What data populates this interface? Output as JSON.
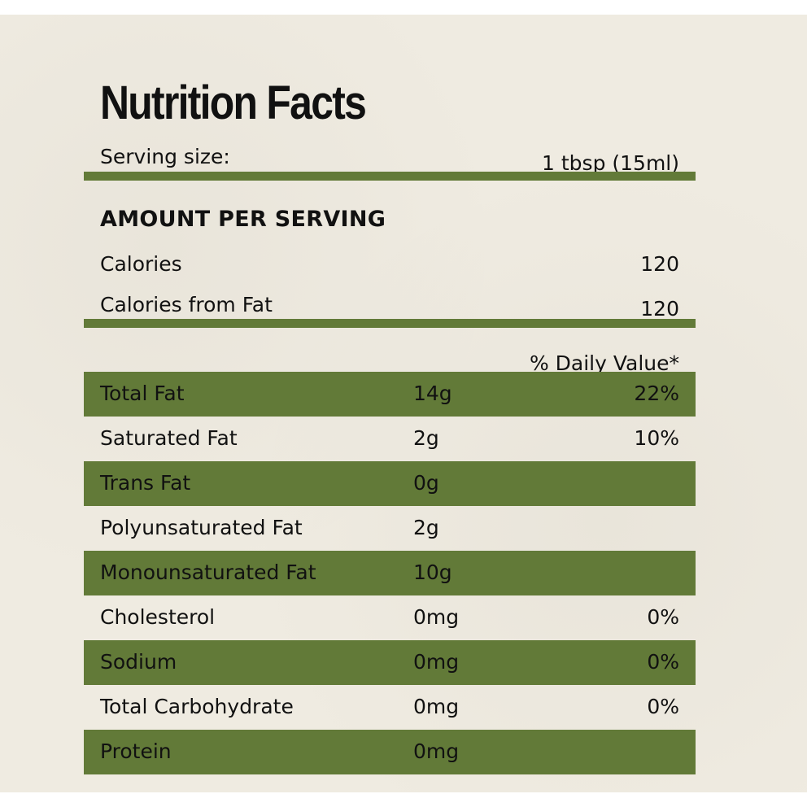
{
  "title": "Nutrition Facts",
  "colors": {
    "accent": "#627a38",
    "background": "#efebe1",
    "text": "#111111"
  },
  "serving": {
    "label": "Serving size:",
    "value": "1 tbsp (15ml)"
  },
  "amount_header": "AMOUNT PER SERVING",
  "calories": {
    "label": "Calories",
    "value": "120"
  },
  "calories_from_fat": {
    "label": "Calories from Fat",
    "value": "120"
  },
  "daily_value_header": "% Daily Value*",
  "nutrients": [
    {
      "name": "Total Fat",
      "amount": "14g",
      "dv": "22%"
    },
    {
      "name": "Saturated Fat",
      "amount": "2g",
      "dv": "10%"
    },
    {
      "name": "Trans Fat",
      "amount": "0g",
      "dv": ""
    },
    {
      "name": "Polyunsaturated Fat",
      "amount": "2g",
      "dv": ""
    },
    {
      "name": "Monounsaturated Fat",
      "amount": "10g",
      "dv": ""
    },
    {
      "name": "Cholesterol",
      "amount": "0mg",
      "dv": "0%"
    },
    {
      "name": "Sodium",
      "amount": "0mg",
      "dv": "0%"
    },
    {
      "name": "Total Carbohydrate",
      "amount": "0mg",
      "dv": "0%"
    },
    {
      "name": "Protein",
      "amount": "0mg",
      "dv": ""
    }
  ]
}
